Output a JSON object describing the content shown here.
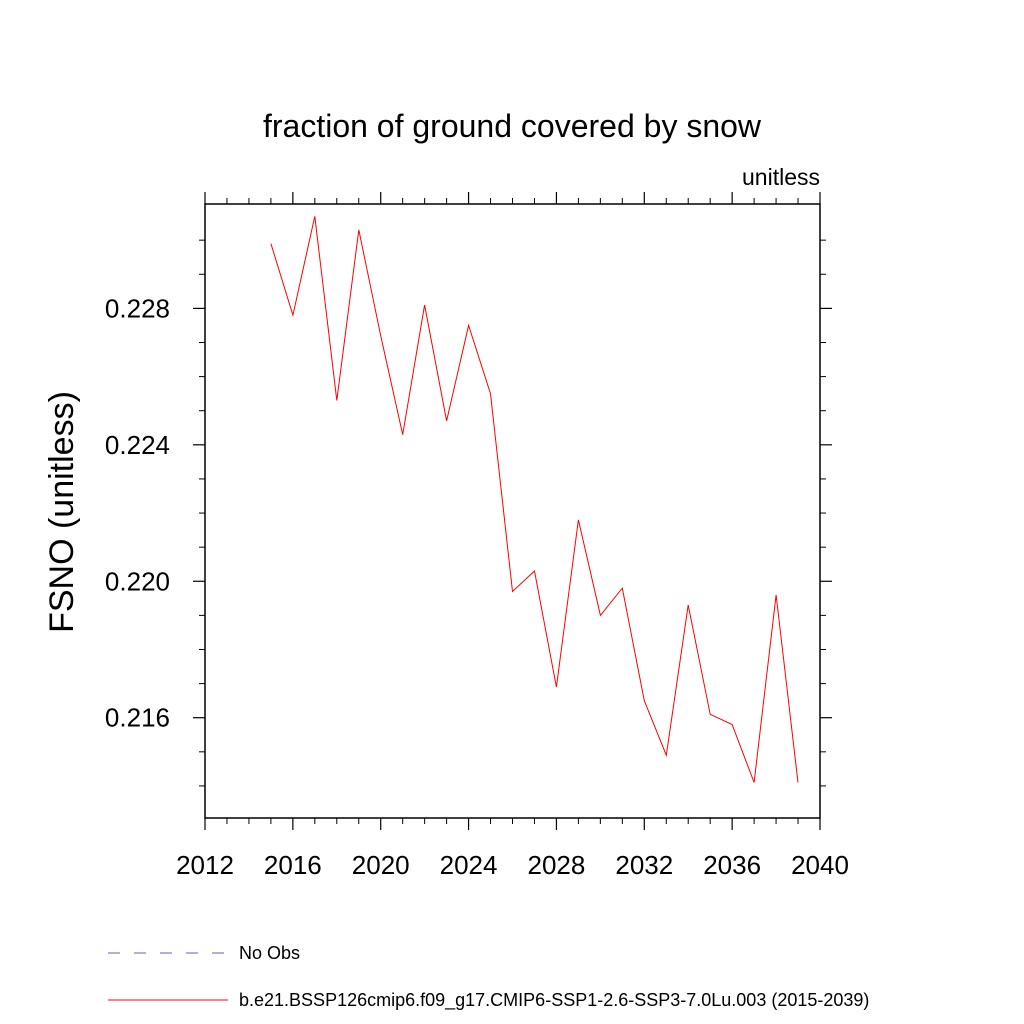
{
  "chart_data": {
    "type": "line",
    "title": "fraction of ground covered by snow",
    "subtitle": "unitless",
    "ylabel": "FSNO  (unitless)",
    "xlabel": "",
    "xlim": [
      2012,
      2040
    ],
    "ylim": [
      0.21306,
      0.23106
    ],
    "xticks": [
      2012,
      2016,
      2020,
      2024,
      2028,
      2032,
      2036,
      2040
    ],
    "yticks": [
      0.216,
      0.22,
      0.224,
      0.228
    ],
    "ytick_labels": [
      "0.216",
      "0.220",
      "0.224",
      "0.228"
    ],
    "grid": false,
    "legend_position": "bottom-left",
    "series": [
      {
        "name": "b.e21.BSSP126cmip6.f09_g17.CMIP6-SSP1-2.6-SSP3-7.0Lu.003 (2015-2039)",
        "color": "#ff0000",
        "style": "solid",
        "x": [
          2015,
          2016,
          2017,
          2018,
          2019,
          2020,
          2021,
          2022,
          2023,
          2024,
          2025,
          2026,
          2027,
          2028,
          2029,
          2030,
          2031,
          2032,
          2033,
          2034,
          2035,
          2036,
          2037,
          2038,
          2039
        ],
        "y": [
          0.2299,
          0.2278,
          0.2307,
          0.2253,
          0.2303,
          0.2272,
          0.2243,
          0.2281,
          0.2247,
          0.2275,
          0.2255,
          0.2197,
          0.2203,
          0.2169,
          0.2218,
          0.219,
          0.2198,
          0.2165,
          0.2149,
          0.2193,
          0.2161,
          0.2158,
          0.2141,
          0.2196,
          0.2141
        ]
      }
    ],
    "legend": [
      {
        "label": "No Obs",
        "color": "#6a5acd",
        "style": "dashed"
      },
      {
        "label": "b.e21.BSSP126cmip6.f09_g17.CMIP6-SSP1-2.6-SSP3-7.0Lu.003 (2015-2039)",
        "color": "#ff0000",
        "style": "solid"
      }
    ]
  }
}
